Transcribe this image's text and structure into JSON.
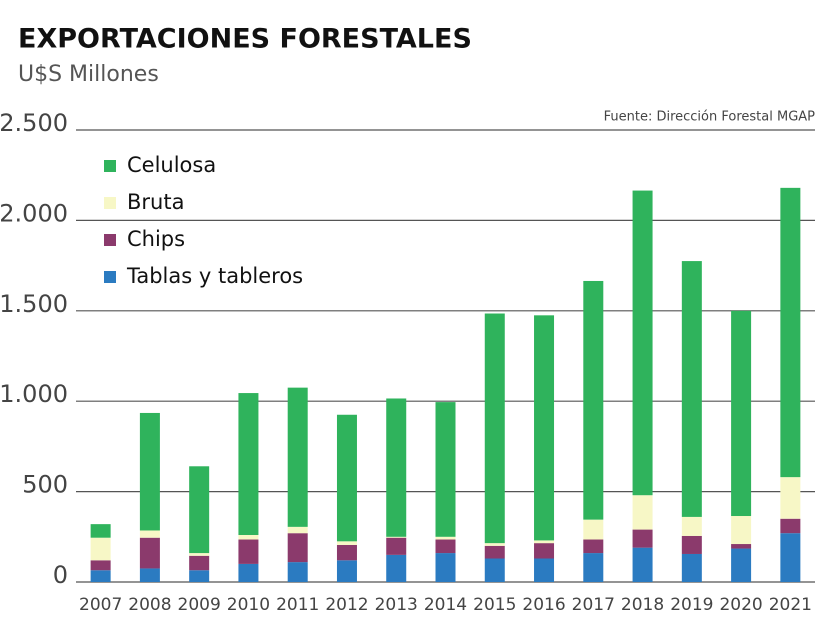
{
  "chart_data": {
    "type": "stacked_bar",
    "title": "EXPORTACIONES FORESTALES",
    "subtitle": "U$S Millones",
    "source": "Fuente: Dirección Forestal MGAP",
    "categories": [
      "2007",
      "2008",
      "2009",
      "2010",
      "2011",
      "2012",
      "2013",
      "2014",
      "2015",
      "2016",
      "2017",
      "2018",
      "2019",
      "2020",
      "2021"
    ],
    "series": [
      {
        "name": "Tablas y tableros",
        "color": "#2b7bc1",
        "values": [
          65,
          75,
          65,
          100,
          110,
          120,
          150,
          160,
          130,
          130,
          160,
          190,
          155,
          185,
          270
        ]
      },
      {
        "name": "Chips",
        "color": "#8b3a6c",
        "values": [
          55,
          170,
          80,
          135,
          160,
          85,
          95,
          75,
          70,
          85,
          75,
          100,
          100,
          25,
          80
        ]
      },
      {
        "name": "Bruta",
        "color": "#f7f7c6",
        "values": [
          125,
          40,
          15,
          25,
          35,
          20,
          5,
          15,
          15,
          15,
          110,
          190,
          105,
          155,
          230
        ]
      },
      {
        "name": "Celulosa",
        "color": "#2fb35c",
        "values": [
          75,
          650,
          480,
          785,
          770,
          700,
          765,
          745,
          1270,
          1245,
          1320,
          1685,
          1415,
          1135,
          1600
        ]
      }
    ],
    "ylim": [
      0,
      2500
    ],
    "yticks": [
      0,
      500,
      {
        "value": 1000,
        "label": "1.000"
      },
      {
        "value": 1500,
        "label": "1.500"
      },
      {
        "value": 2000,
        "label": "2.000"
      },
      {
        "value": 2500,
        "label": "2.500"
      }
    ],
    "grid": true
  }
}
